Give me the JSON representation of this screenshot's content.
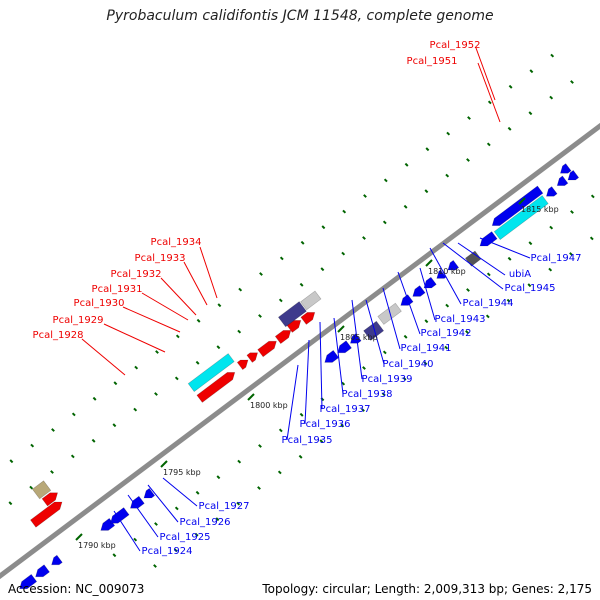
{
  "title": "Pyrobaculum calidifontis JCM 11548, complete genome",
  "accession": "Accession: NC_009073",
  "topology": "Topology: circular; Length: 2,009,313 bp; Genes: 2,175",
  "colors": {
    "backbone": "#8c8c8c",
    "forward": "#ee0000",
    "reverse": "#0000ee",
    "rrna": "#00e5ee",
    "pseudo": "#c8c8c8",
    "tick_minor": "#006400",
    "label_red": "#ee0000",
    "label_blue": "#0000ee"
  },
  "ticks": [
    {
      "label": "1790 kbp"
    },
    {
      "label": "1795 kbp"
    },
    {
      "label": "1800 kbp"
    },
    {
      "label": "1805 kbp"
    },
    {
      "label": "1810 kbp"
    },
    {
      "label": "1815 kbp"
    }
  ],
  "labels": [
    {
      "text": "Pcal_1952",
      "color": "red"
    },
    {
      "text": "Pcal_1951",
      "color": "red"
    },
    {
      "text": "Pcal_1934",
      "color": "red"
    },
    {
      "text": "Pcal_1933",
      "color": "red"
    },
    {
      "text": "Pcal_1932",
      "color": "red"
    },
    {
      "text": "Pcal_1931",
      "color": "red"
    },
    {
      "text": "Pcal_1930",
      "color": "red"
    },
    {
      "text": "Pcal_1929",
      "color": "red"
    },
    {
      "text": "Pcal_1928",
      "color": "red"
    },
    {
      "text": "Pcal_1947",
      "color": "blue"
    },
    {
      "text": "ubiA",
      "color": "blue"
    },
    {
      "text": "Pcal_1945",
      "color": "blue"
    },
    {
      "text": "Pcal_1944",
      "color": "blue"
    },
    {
      "text": "Pcal_1943",
      "color": "blue"
    },
    {
      "text": "Pcal_1942",
      "color": "blue"
    },
    {
      "text": "Pcal_1941",
      "color": "blue"
    },
    {
      "text": "Pcal_1940",
      "color": "blue"
    },
    {
      "text": "Pcal_1939",
      "color": "blue"
    },
    {
      "text": "Pcal_1938",
      "color": "blue"
    },
    {
      "text": "Pcal_1937",
      "color": "blue"
    },
    {
      "text": "Pcal_1936",
      "color": "blue"
    },
    {
      "text": "Pcal_1935",
      "color": "blue"
    },
    {
      "text": "Pcal_1927",
      "color": "blue"
    },
    {
      "text": "Pcal_1926",
      "color": "blue"
    },
    {
      "text": "Pcal_1925",
      "color": "blue"
    },
    {
      "text": "Pcal_1924",
      "color": "blue"
    }
  ]
}
